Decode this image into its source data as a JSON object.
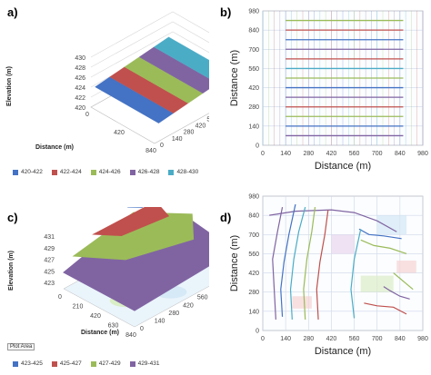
{
  "panels": {
    "a": {
      "letter": "a)",
      "legend": [
        "420-422",
        "422-424",
        "424-426",
        "426-428",
        "428-430"
      ]
    },
    "b": {
      "letter": "b)"
    },
    "c": {
      "letter": "c)",
      "legend": [
        "423-425",
        "425-427",
        "427-429",
        "429-431"
      ],
      "plot_area_tag": "Plot Area"
    },
    "d": {
      "letter": "d)"
    }
  },
  "chart_data": [
    {
      "type": "surface",
      "panel": "a",
      "zlabel": "Elevation (m)",
      "xlabel": "Distance (m)",
      "x_ticks": [
        "0",
        "420",
        "840"
      ],
      "y_ticks": [
        "0",
        "140",
        "280",
        "420",
        "560",
        "700",
        "840",
        "980"
      ],
      "z_ticks": [
        "420",
        "422",
        "424",
        "426",
        "428",
        "430"
      ],
      "series": [
        {
          "name": "420-422",
          "color": "#4472c4"
        },
        {
          "name": "422-424",
          "color": "#c0504d"
        },
        {
          "name": "424-426",
          "color": "#9bbb59"
        },
        {
          "name": "426-428",
          "color": "#8064a2"
        },
        {
          "name": "428-430",
          "color": "#4bacc6"
        }
      ]
    },
    {
      "type": "contour",
      "panel": "b",
      "xlabel": "Distance (m)",
      "ylabel": "Distance (m)",
      "x_ticks": [
        "0",
        "140",
        "280",
        "420",
        "560",
        "700",
        "840",
        "980"
      ],
      "y_ticks": [
        "0",
        "140",
        "280",
        "420",
        "560",
        "700",
        "840",
        "980"
      ],
      "xlim": [
        0,
        980
      ],
      "ylim": [
        0,
        980
      ],
      "contours": [
        {
          "y": 910,
          "color": "#9bbb59"
        },
        {
          "y": 840,
          "color": "#c0504d"
        },
        {
          "y": 770,
          "color": "#4472c4"
        },
        {
          "y": 700,
          "color": "#8064a2"
        },
        {
          "y": 630,
          "color": "#c0504d"
        },
        {
          "y": 560,
          "color": "#4bacc6"
        },
        {
          "y": 490,
          "color": "#9bbb59"
        },
        {
          "y": 420,
          "color": "#4472c4"
        },
        {
          "y": 350,
          "color": "#8064a2"
        },
        {
          "y": 280,
          "color": "#c0504d"
        },
        {
          "y": 210,
          "color": "#9bbb59"
        },
        {
          "y": 140,
          "color": "#4472c4"
        },
        {
          "y": 70,
          "color": "#8064a2"
        }
      ],
      "x_range": [
        140,
        860
      ]
    },
    {
      "type": "surface",
      "panel": "c",
      "zlabel": "Elevation (m)",
      "xlabel": "Distance (m)",
      "x_ticks": [
        "0",
        "210",
        "420",
        "630",
        "840"
      ],
      "y_ticks": [
        "0",
        "140",
        "280",
        "420",
        "560",
        "700",
        "840",
        "980"
      ],
      "z_ticks": [
        "423",
        "425",
        "427",
        "429",
        "431"
      ],
      "series": [
        {
          "name": "423-425",
          "color": "#4472c4"
        },
        {
          "name": "425-427",
          "color": "#c0504d"
        },
        {
          "name": "427-429",
          "color": "#9bbb59"
        },
        {
          "name": "429-431",
          "color": "#8064a2"
        }
      ]
    },
    {
      "type": "contour",
      "panel": "d",
      "xlabel": "Distance (m)",
      "ylabel": "Distance (m)",
      "x_ticks": [
        "0",
        "140",
        "280",
        "420",
        "560",
        "700",
        "840",
        "980"
      ],
      "y_ticks": [
        "0",
        "140",
        "280",
        "420",
        "560",
        "700",
        "840",
        "980"
      ],
      "xlim": [
        0,
        980
      ],
      "ylim": [
        0,
        980
      ]
    }
  ],
  "colors": {
    "blue": "#4472c4",
    "red": "#c0504d",
    "green": "#9bbb59",
    "purple": "#8064a2",
    "teal": "#4bacc6"
  }
}
